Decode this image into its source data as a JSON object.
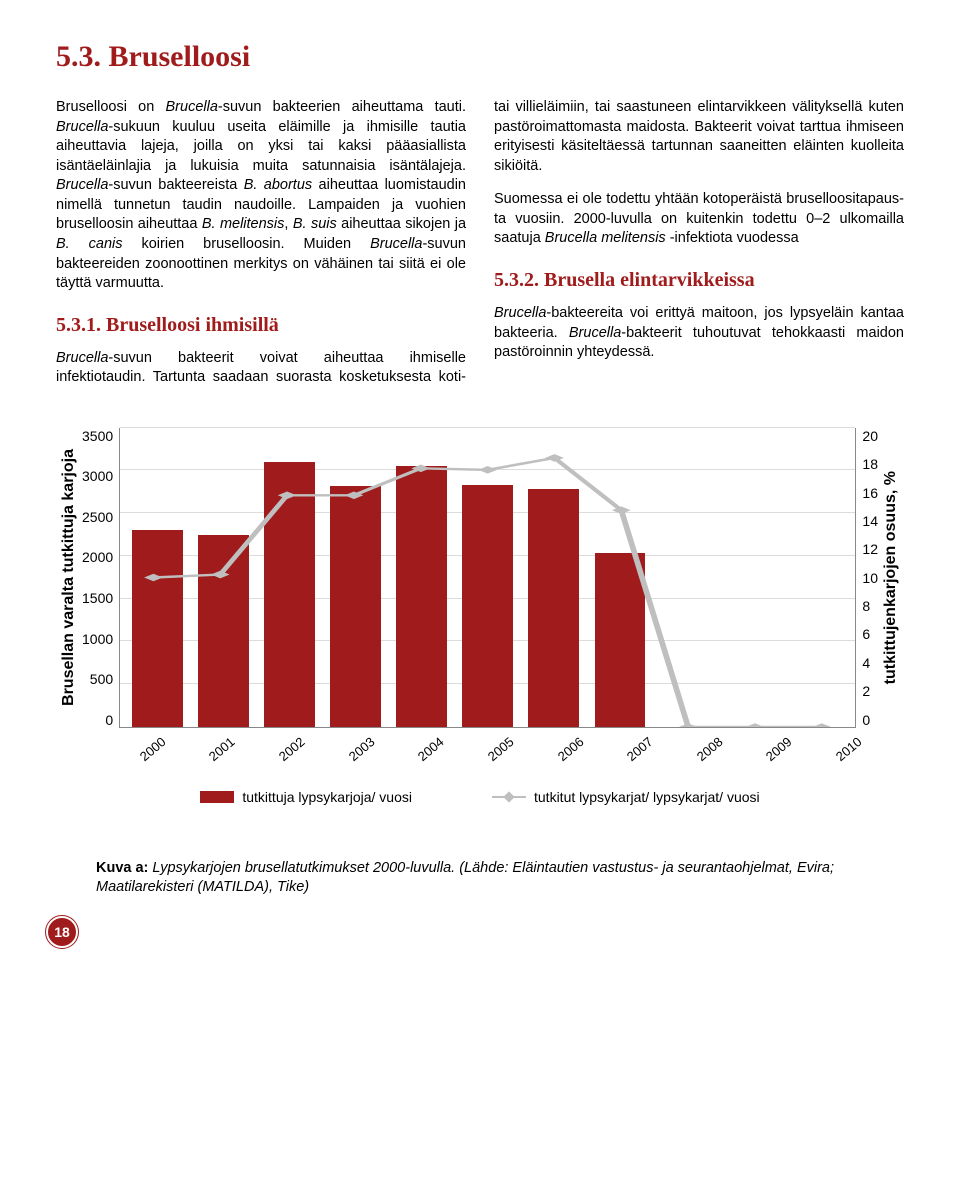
{
  "title": "5.3. Brusel­loo­si",
  "heading_main": "5.3. Bruselloosi",
  "para_intro_html": "Bruselloosi on <i>Brucella</i>-suvun bakteerien aiheuttama tauti. <i>Brucella</i>-sukuun kuuluu useita eläimille ja ihmisille tautia aiheuttavia lajeja, joilla on yksi tai kaksi pääasiallista isäntäeläinlajia ja lukuisia muita satunnaisia isäntälajeja. <i>Brucella</i>-suvun bakteereista <i>B. abortus</i> aiheuttaa luomistaudin nimellä tunnetun taudin naudoille. Lampaiden ja vuohien bruselloosin aiheuttaa <i>B. melitensis</i>, <i>B. suis</i> aiheuttaa sikojen ja <i>B. canis</i> koirien bruselloosin. Muiden <i>Brucella</i>-suvun bakteereiden zoonoottinen merkitys on vähäinen tai siitä ei ole täyttä varmuutta.",
  "heading_531": "5.3.1. Bruselloosi ihmisillä",
  "para_531_html": "<i>Brucella</i>-suvun bakteerit voivat aiheuttaa ihmiselle infektiotaudin. Tartunta saadaan suorasta kosketuksesta koti- tai villieläimiin, tai saastuneen elintarvikkeen välityksellä kuten pastöroimattomasta maidosta. Bakteerit voivat tarttua ihmiseen erityisesti käsiteltäessä tartunnan saaneitten eläinten kuolleita sikiöitä.",
  "para_531b_html": "Suomessa ei ole todettu yhtään kotoperäistä bruselloositapaus­ta vuosiin. 2000-luvulla on kuitenkin todettu 0–2 ulkomailla saatuja <i>Brucella melitensis</i> -infektiota vuodessa",
  "heading_532": "5.3.2. Brusella elintarvikkeissa",
  "para_532_html": "<i>Brucella</i>-bakteereita voi erittyä maitoon, jos lypsyeläin kantaa bakteeria. <i>Brucella</i>-bakteerit tuhoutuvat tehokkaasti maidon pastöroinnin yhteydessä.",
  "chart": {
    "type": "combo-bar-line",
    "ylabel_left": "Brusellan varalta tutkittuja karjoja",
    "ylabel_right": "tutkittujenkarjojen osuus, %",
    "y_left_ticks": [
      "3500",
      "3000",
      "2500",
      "2000",
      "1500",
      "1000",
      "500",
      "0"
    ],
    "y_right_ticks": [
      "20",
      "18",
      "16",
      "14",
      "12",
      "10",
      "8",
      "6",
      "4",
      "2",
      "0"
    ],
    "y_left_max": 3500,
    "y_right_max": 20,
    "categories": [
      "2000",
      "2001",
      "2002",
      "2003",
      "2004",
      "2005",
      "2006",
      "2007",
      "2008",
      "2009",
      "2010"
    ],
    "bar_values": [
      2300,
      2250,
      3100,
      2820,
      3050,
      2830,
      2780,
      2030,
      0,
      0,
      0
    ],
    "line_values": [
      10.0,
      10.2,
      15.5,
      15.5,
      17.3,
      17.2,
      18.0,
      14.5,
      0,
      0,
      0
    ],
    "bar_color": "#a01b1b",
    "line_color": "#bfbfbf",
    "grid_color": "#dcdcdc",
    "axis_color": "#888888",
    "legend_bar": "tutkittuja lypsykarjoja/ vuosi",
    "legend_line": "tutkitut lypsykarjat/ lypsykarjat/ vuosi"
  },
  "caption_html": "<b>Kuva a:</b> <i>Lypsykarjojen brusellatutkimukset 2000-luvulla. (Lähde: Eläintautien vastustus- ja seurantaohjelmat, Evira; Maatilarekisteri (MATILDA), Tike)</i>",
  "page_number": "18"
}
